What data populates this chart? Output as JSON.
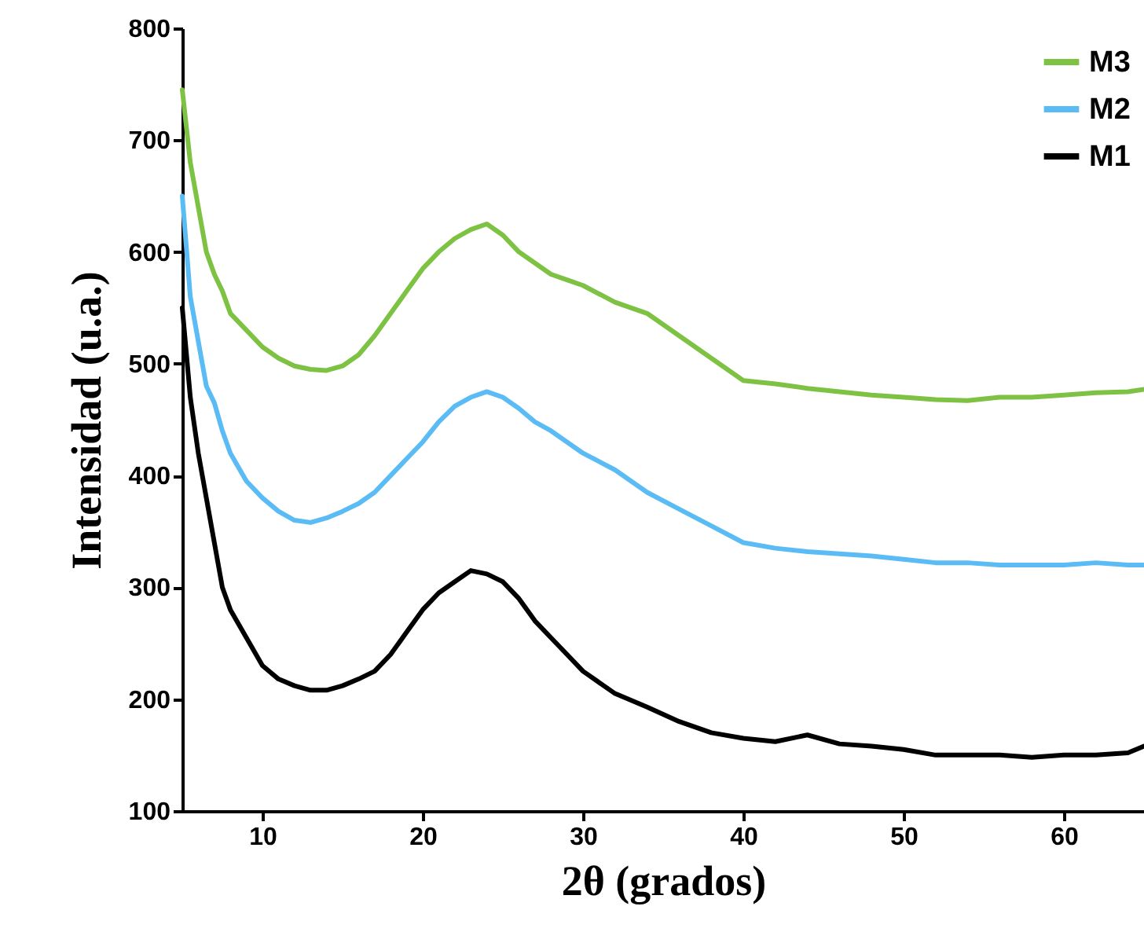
{
  "chart_data": {
    "type": "line",
    "xlabel": "2θ (grados)",
    "ylabel": "Intensidad (u.a.)",
    "xlim": [
      5,
      65
    ],
    "xticks": [
      10,
      20,
      30,
      40,
      50,
      60
    ],
    "ylim": [
      100,
      800
    ],
    "yticks": [
      100,
      200,
      300,
      400,
      500,
      600,
      700,
      800
    ],
    "grid": false,
    "legend": "top right",
    "line_style": "solid",
    "marker": "none",
    "x": [
      5,
      5.5,
      6,
      6.5,
      7,
      7.5,
      8,
      9,
      10,
      11,
      12,
      13,
      14,
      15,
      16,
      17,
      18,
      19,
      20,
      21,
      22,
      23,
      24,
      25,
      26,
      27,
      28,
      29,
      30,
      32,
      34,
      36,
      38,
      40,
      42,
      44,
      46,
      48,
      50,
      52,
      54,
      56,
      58,
      60,
      62,
      64,
      65
    ],
    "series": [
      {
        "name": "M3",
        "color": "#7dc242",
        "values": [
          745,
          680,
          640,
          600,
          580,
          565,
          545,
          530,
          515,
          505,
          498,
          495,
          494,
          498,
          508,
          525,
          545,
          565,
          585,
          600,
          612,
          620,
          625,
          615,
          600,
          590,
          580,
          575,
          570,
          555,
          545,
          525,
          505,
          485,
          482,
          478,
          475,
          472,
          470,
          468,
          467,
          470,
          470,
          472,
          474,
          475,
          477
        ]
      },
      {
        "name": "M2",
        "color": "#5bbcf5",
        "values": [
          650,
          560,
          520,
          480,
          465,
          440,
          420,
          395,
          380,
          368,
          360,
          358,
          362,
          368,
          375,
          385,
          400,
          415,
          430,
          448,
          462,
          470,
          475,
          470,
          460,
          448,
          440,
          430,
          420,
          405,
          385,
          370,
          355,
          340,
          335,
          332,
          330,
          328,
          325,
          322,
          322,
          320,
          320,
          320,
          322,
          320,
          320
        ]
      },
      {
        "name": "M1",
        "color": "#000000",
        "values": [
          550,
          470,
          420,
          380,
          340,
          300,
          280,
          255,
          230,
          218,
          212,
          208,
          208,
          212,
          218,
          225,
          240,
          260,
          280,
          295,
          305,
          315,
          312,
          305,
          290,
          270,
          255,
          240,
          225,
          205,
          193,
          180,
          170,
          165,
          162,
          168,
          160,
          158,
          155,
          150,
          150,
          150,
          148,
          150,
          150,
          152,
          158
        ]
      }
    ]
  }
}
